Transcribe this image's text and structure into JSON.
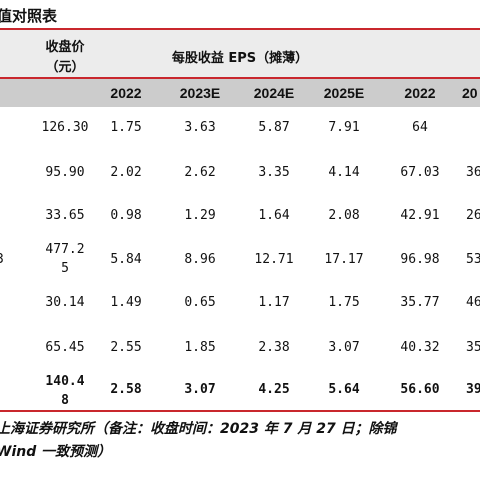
{
  "title": "值对照表",
  "header": {
    "close_price": "收盘价",
    "close_unit": "（元）",
    "eps_group": "每股收益 EPS（摊薄）",
    "years": [
      "2022",
      "2023E",
      "2024E",
      "2025E",
      "2022",
      "20"
    ]
  },
  "rows": [
    {
      "stub": "",
      "close": [
        "126.30"
      ],
      "eps": [
        "1.75",
        "3.63",
        "5.87",
        "7.91"
      ],
      "pe": [
        "64",
        ""
      ]
    },
    {
      "stub": "",
      "close": [
        "95.90"
      ],
      "eps": [
        "2.02",
        "2.62",
        "3.35",
        "4.14"
      ],
      "pe": [
        "67.03",
        "36"
      ]
    },
    {
      "stub": "",
      "close": [
        "33.65"
      ],
      "eps": [
        "0.98",
        "1.29",
        "1.64",
        "2.08"
      ],
      "pe": [
        "42.91",
        "26"
      ]
    },
    {
      "stub": "3",
      "close": [
        "477.2",
        "5"
      ],
      "eps": [
        "5.84",
        "8.96",
        "12.71",
        "17.17"
      ],
      "pe": [
        "96.98",
        "53"
      ]
    },
    {
      "stub": "",
      "close": [
        "30.14"
      ],
      "eps": [
        "1.49",
        "0.65",
        "1.17",
        "1.75"
      ],
      "pe": [
        "35.77",
        "46"
      ]
    },
    {
      "stub": "",
      "close": [
        "65.45"
      ],
      "eps": [
        "2.55",
        "1.85",
        "2.38",
        "3.07"
      ],
      "pe": [
        "40.32",
        "35"
      ]
    },
    {
      "stub": "",
      "close": [
        "140.4",
        "8"
      ],
      "eps": [
        "2.58",
        "3.07",
        "4.25",
        "5.64"
      ],
      "pe": [
        "56.60",
        "39"
      ],
      "bold": true
    }
  ],
  "note_line1": "上海证券研究所（备注：收盘时间：2023 年 7 月 27 日；除锦",
  "note_line2": " Wind 一致预测）",
  "accent_color": "#c9272d"
}
